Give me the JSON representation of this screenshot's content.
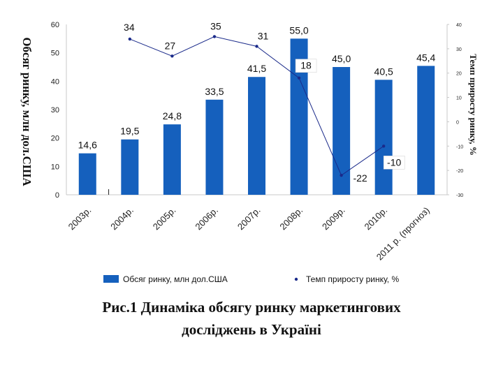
{
  "chart_data": {
    "type": "bar",
    "categories": [
      "2003р.",
      "2004р.",
      "2005р.",
      "2006р.",
      "2007р.",
      "2008р.",
      "2009р.",
      "2010р.",
      "2011 р. (прогноз)"
    ],
    "series": [
      {
        "name": "Обсяг ринку, млн дол.США",
        "type": "bar",
        "axis": "left",
        "color": "#1560bd",
        "values": [
          14.6,
          19.5,
          24.8,
          33.5,
          41.5,
          55.0,
          45.0,
          40.5,
          45.4
        ],
        "labels": [
          "14,6",
          "19,5",
          "24,8",
          "33,5",
          "41,5",
          "55,0",
          "45,0",
          "40,5",
          "45,4"
        ]
      },
      {
        "name": "Темп приросту ринку, %",
        "type": "line",
        "axis": "right",
        "color": "#1a2a8a",
        "values": [
          null,
          34,
          27,
          35,
          31,
          18,
          -22,
          -10,
          null
        ],
        "labels": [
          "",
          "34",
          "27",
          "35",
          "31",
          "18",
          "-22",
          "-10",
          ""
        ]
      }
    ],
    "ylabel": "Обсяг ринку, млн дол.США",
    "y2label": "Темп приросту ринку, %",
    "ylim": [
      0,
      60
    ],
    "yticks": [
      "0",
      "10",
      "20",
      "30",
      "40",
      "50",
      "60"
    ],
    "y2lim": [
      -30,
      40
    ],
    "y2ticks": [
      "-30",
      "-20",
      "-10",
      "0",
      "10",
      "20",
      "30",
      "40"
    ],
    "legend_position": "bottom",
    "grid": false
  },
  "caption": {
    "line1": "Рис.1 Динаміка обсягу ринку маркетингових",
    "line2": "досліджень в Україні"
  }
}
